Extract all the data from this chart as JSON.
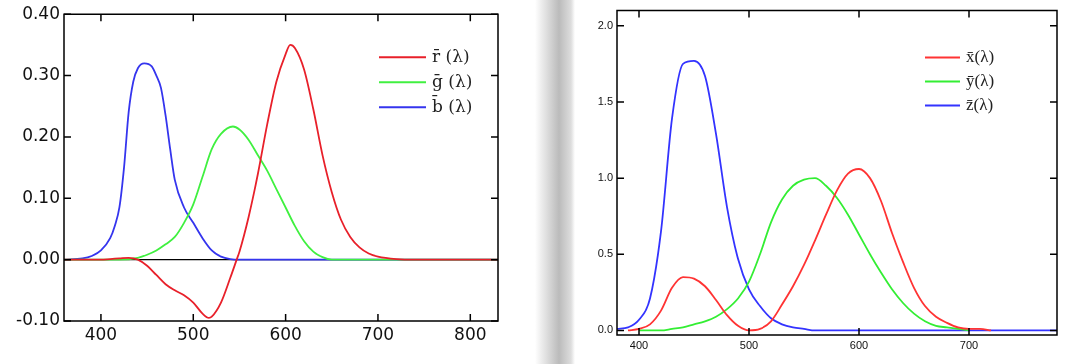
{
  "chart_data": [
    {
      "type": "line",
      "xlim": [
        360,
        830
      ],
      "xticks": [
        400,
        500,
        600,
        700,
        800
      ],
      "ylim": [
        -0.1,
        0.4
      ],
      "yticks": [
        {
          "value": -0.1,
          "label": "-0.10"
        },
        {
          "value": 0,
          "label": "0.00"
        },
        {
          "value": 0.1,
          "label": "0.10"
        },
        {
          "value": 0.2,
          "label": "0.20"
        },
        {
          "value": 0.3,
          "label": "0.30"
        },
        {
          "value": 0.4,
          "label": "0.40"
        }
      ],
      "legend": "top right",
      "marker": "none",
      "ref_lines": [
        {
          "axis": "y",
          "value": 0,
          "color": "#000000"
        }
      ],
      "series": [
        {
          "name": "r̄ (λ)",
          "color": "#e8202a",
          "x": [
            360,
            380,
            400,
            410,
            420,
            430,
            440,
            450,
            460,
            470,
            480,
            490,
            500,
            510,
            517,
            520,
            530,
            540,
            547,
            550,
            560,
            570,
            580,
            590,
            600,
            605,
            610,
            620,
            630,
            640,
            650,
            660,
            670,
            680,
            690,
            700,
            720,
            740,
            780,
            830
          ],
          "values": [
            0,
            0,
            0,
            0.001,
            0.002,
            0.003,
            0,
            -0.01,
            -0.025,
            -0.04,
            -0.05,
            -0.058,
            -0.07,
            -0.088,
            -0.095,
            -0.093,
            -0.07,
            -0.03,
            0,
            0.013,
            0.07,
            0.14,
            0.22,
            0.29,
            0.335,
            0.35,
            0.345,
            0.31,
            0.245,
            0.17,
            0.11,
            0.065,
            0.037,
            0.02,
            0.01,
            0.005,
            0.001,
            0,
            0,
            0
          ]
        },
        {
          "name": "ḡ (λ)",
          "color": "#40f040",
          "x": [
            360,
            400,
            420,
            440,
            450,
            460,
            470,
            480,
            490,
            500,
            510,
            520,
            530,
            543,
            550,
            560,
            570,
            580,
            590,
            600,
            610,
            620,
            630,
            640,
            650,
            700,
            830
          ],
          "values": [
            0,
            0,
            0,
            0.003,
            0.008,
            0.015,
            0.025,
            0.037,
            0.06,
            0.09,
            0.135,
            0.18,
            0.205,
            0.217,
            0.212,
            0.195,
            0.17,
            0.145,
            0.115,
            0.085,
            0.055,
            0.03,
            0.013,
            0.004,
            0,
            0,
            0
          ]
        },
        {
          "name": "b̄ (λ)",
          "color": "#3535ee",
          "x": [
            360,
            380,
            390,
            400,
            410,
            415,
            420,
            425,
            430,
            435,
            440,
            447,
            455,
            460,
            465,
            470,
            475,
            480,
            490,
            500,
            510,
            520,
            530,
            540,
            550,
            600,
            700,
            830
          ],
          "values": [
            0,
            0.002,
            0.006,
            0.015,
            0.035,
            0.055,
            0.085,
            0.15,
            0.24,
            0.29,
            0.312,
            0.32,
            0.315,
            0.3,
            0.28,
            0.235,
            0.18,
            0.13,
            0.085,
            0.06,
            0.035,
            0.015,
            0.005,
            0.001,
            0,
            0,
            0,
            0
          ]
        }
      ]
    },
    {
      "type": "line",
      "xlim": [
        380,
        780
      ],
      "xticks": [
        400,
        500,
        600,
        700
      ],
      "ylim": [
        -0.03,
        2.1
      ],
      "yticks": [
        {
          "value": 0,
          "label": "0.0"
        },
        {
          "value": 0.5,
          "label": "0.5"
        },
        {
          "value": 1,
          "label": "1.0"
        },
        {
          "value": 1.5,
          "label": "1.5"
        },
        {
          "value": 2,
          "label": "2.0"
        }
      ],
      "legend": "top right",
      "marker": "none",
      "x": [
        380,
        390,
        400,
        410,
        420,
        430,
        440,
        450,
        460,
        470,
        480,
        490,
        500,
        510,
        520,
        530,
        540,
        550,
        560,
        570,
        580,
        590,
        600,
        610,
        620,
        630,
        640,
        650,
        660,
        670,
        680,
        690,
        700,
        710,
        720,
        730,
        740,
        750,
        760,
        770,
        780
      ],
      "series": [
        {
          "name": "x̄(λ)",
          "color": "#ff3333",
          "values": [
            null,
            0,
            0.01,
            0.04,
            0.13,
            0.28,
            0.35,
            0.34,
            0.29,
            0.2,
            0.1,
            0.03,
            0,
            0.01,
            0.06,
            0.17,
            0.29,
            0.43,
            0.59,
            0.76,
            0.92,
            1.03,
            1.06,
            1,
            0.85,
            0.64,
            0.45,
            0.28,
            0.16,
            0.09,
            0.05,
            0.02,
            0.01,
            0.01,
            0,
            null,
            null,
            null,
            null,
            null,
            null
          ]
        },
        {
          "name": "ȳ(λ)",
          "color": "#33ee33",
          "values": [
            null,
            null,
            0,
            0,
            0,
            0.01,
            0.02,
            0.04,
            0.06,
            0.09,
            0.14,
            0.21,
            0.32,
            0.5,
            0.71,
            0.86,
            0.95,
            0.99,
            1,
            0.95,
            0.87,
            0.76,
            0.63,
            0.5,
            0.38,
            0.27,
            0.18,
            0.11,
            0.06,
            0.03,
            0.02,
            0.01,
            0,
            null,
            null,
            null,
            null,
            null,
            null,
            null,
            null
          ]
        },
        {
          "name": "z̄(λ)",
          "color": "#3333ff",
          "values": [
            0.01,
            0.02,
            0.07,
            0.21,
            0.65,
            1.39,
            1.75,
            1.77,
            1.67,
            1.29,
            0.81,
            0.47,
            0.27,
            0.16,
            0.08,
            0.04,
            0.02,
            0.01,
            0,
            0,
            0,
            0,
            0,
            0,
            0,
            0,
            0,
            0,
            0,
            0,
            0,
            0,
            0,
            0,
            0,
            0,
            0,
            0,
            0,
            0,
            0
          ]
        }
      ]
    }
  ]
}
